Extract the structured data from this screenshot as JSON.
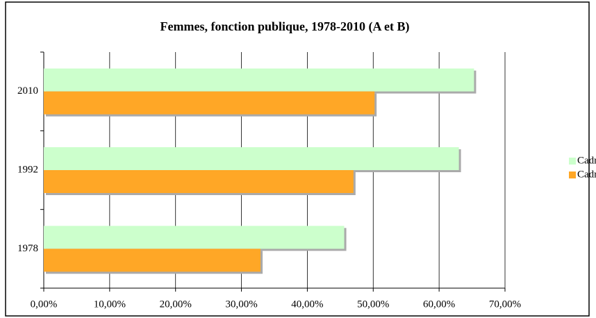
{
  "chart_data": {
    "type": "hbar",
    "title": "Femmes, fonction publique, 1978-2010 (A et B)",
    "categories": [
      "1978",
      "1992",
      "2010"
    ],
    "series": [
      {
        "name": "Cadre B",
        "color": "#ccffcc",
        "values": [
          45.6,
          63.0,
          65.3
        ]
      },
      {
        "name": "Cadre A",
        "color": "#ffa726",
        "values": [
          32.9,
          47.0,
          50.2
        ]
      }
    ],
    "xlim": [
      0,
      70
    ],
    "xticks": [
      {
        "value": 0,
        "label": "0,00%"
      },
      {
        "value": 10,
        "label": "10,00%"
      },
      {
        "value": 20,
        "label": "20,00%"
      },
      {
        "value": 30,
        "label": "30,00%"
      },
      {
        "value": 40,
        "label": "40,00%"
      },
      {
        "value": 50,
        "label": "50,00%"
      },
      {
        "value": 60,
        "label": "60,00%"
      },
      {
        "value": 70,
        "label": "70,00%"
      }
    ],
    "grid": true,
    "legend": "right"
  }
}
